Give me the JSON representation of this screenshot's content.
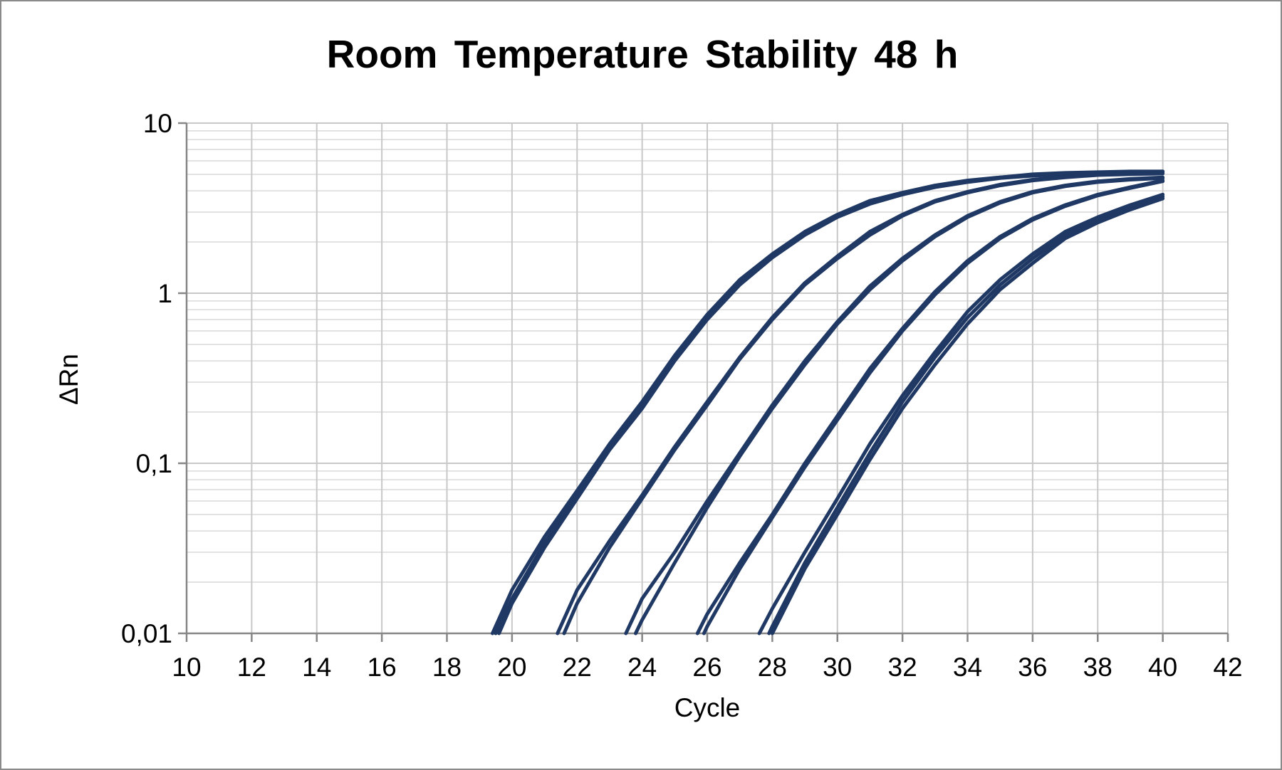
{
  "chart_data": {
    "type": "line",
    "title": "Room Temperature Stability 48 h",
    "xlabel": "Cycle",
    "ylabel": "ΔRn",
    "xlim": [
      10,
      42
    ],
    "x_ticks": [
      10,
      12,
      14,
      16,
      18,
      20,
      22,
      24,
      26,
      28,
      30,
      32,
      34,
      36,
      38,
      40,
      42
    ],
    "y_scale": "log",
    "ylim": [
      0.01,
      10
    ],
    "y_ticks": [
      {
        "value": 0.01,
        "label": "0,01"
      },
      {
        "value": 0.1,
        "label": "0,1"
      },
      {
        "value": 1,
        "label": "1"
      },
      {
        "value": 10,
        "label": "10"
      }
    ],
    "grid": true,
    "legend": "none",
    "line_color": "#1f3864",
    "series": [
      {
        "x": [
          19.4,
          20,
          21,
          22,
          23,
          24,
          25,
          26,
          27,
          28,
          29,
          30,
          31,
          32,
          33,
          34,
          35,
          36,
          37,
          38,
          39,
          40
        ],
        "values": [
          0.01,
          0.018,
          0.037,
          0.069,
          0.13,
          0.23,
          0.43,
          0.75,
          1.2,
          1.7,
          2.3,
          2.9,
          3.5,
          3.9,
          4.3,
          4.6,
          4.8,
          5.0,
          5.1,
          5.15,
          5.2,
          5.2
        ]
      },
      {
        "x": [
          19.5,
          20,
          21,
          22,
          23,
          24,
          25,
          26,
          27,
          28,
          29,
          30,
          31,
          32,
          33,
          34,
          35,
          36,
          37,
          38,
          39,
          40
        ],
        "values": [
          0.01,
          0.016,
          0.034,
          0.065,
          0.125,
          0.22,
          0.41,
          0.72,
          1.15,
          1.65,
          2.25,
          2.85,
          3.4,
          3.85,
          4.25,
          4.55,
          4.8,
          4.95,
          5.05,
          5.1,
          5.15,
          5.2
        ]
      },
      {
        "x": [
          19.6,
          20,
          21,
          22,
          23,
          24,
          25,
          26,
          27,
          28,
          29,
          30,
          31,
          32,
          33,
          34,
          35,
          36,
          37,
          38,
          39,
          40
        ],
        "values": [
          0.01,
          0.015,
          0.032,
          0.062,
          0.12,
          0.21,
          0.4,
          0.7,
          1.12,
          1.62,
          2.2,
          2.8,
          3.35,
          3.8,
          4.2,
          4.5,
          4.75,
          4.9,
          5.0,
          5.05,
          5.1,
          5.15
        ]
      },
      {
        "x": [
          21.4,
          22,
          23,
          24,
          25,
          26,
          27,
          28,
          29,
          30,
          31,
          32,
          33,
          34,
          35,
          36,
          37,
          38,
          39,
          40
        ],
        "values": [
          0.01,
          0.018,
          0.035,
          0.065,
          0.125,
          0.23,
          0.42,
          0.72,
          1.15,
          1.65,
          2.3,
          2.9,
          3.5,
          3.95,
          4.35,
          4.65,
          4.85,
          5.0,
          5.05,
          5.1
        ]
      },
      {
        "x": [
          21.6,
          22,
          23,
          24,
          25,
          26,
          27,
          28,
          29,
          30,
          31,
          32,
          33,
          34,
          35,
          36,
          37,
          38,
          39,
          40
        ],
        "values": [
          0.01,
          0.015,
          0.032,
          0.062,
          0.12,
          0.22,
          0.41,
          0.7,
          1.12,
          1.6,
          2.2,
          2.85,
          3.45,
          3.9,
          4.3,
          4.6,
          4.8,
          4.95,
          5.0,
          5.05
        ]
      },
      {
        "x": [
          23.5,
          24,
          25,
          26,
          27,
          28,
          29,
          30,
          31,
          32,
          33,
          34,
          35,
          36,
          37,
          38,
          39,
          40
        ],
        "values": [
          0.01,
          0.016,
          0.03,
          0.06,
          0.115,
          0.22,
          0.4,
          0.68,
          1.1,
          1.6,
          2.2,
          2.85,
          3.45,
          3.95,
          4.3,
          4.55,
          4.7,
          4.8
        ]
      },
      {
        "x": [
          23.8,
          24,
          25,
          26,
          27,
          28,
          29,
          30,
          31,
          32,
          33,
          34,
          35,
          36,
          37,
          38,
          39,
          40
        ],
        "values": [
          0.01,
          0.012,
          0.026,
          0.055,
          0.11,
          0.21,
          0.38,
          0.66,
          1.05,
          1.55,
          2.15,
          2.8,
          3.4,
          3.9,
          4.25,
          4.5,
          4.65,
          4.75
        ]
      },
      {
        "x": [
          25.7,
          26,
          27,
          28,
          29,
          30,
          31,
          32,
          33,
          34,
          35,
          36,
          37,
          38,
          39,
          40
        ],
        "values": [
          0.01,
          0.013,
          0.026,
          0.05,
          0.1,
          0.19,
          0.36,
          0.62,
          1.02,
          1.55,
          2.15,
          2.75,
          3.3,
          3.8,
          4.2,
          4.6
        ]
      },
      {
        "x": [
          25.9,
          26,
          27,
          28,
          29,
          30,
          31,
          32,
          33,
          34,
          35,
          36,
          37,
          38,
          39,
          40
        ],
        "values": [
          0.01,
          0.011,
          0.024,
          0.048,
          0.095,
          0.18,
          0.34,
          0.6,
          0.98,
          1.5,
          2.1,
          2.7,
          3.25,
          3.75,
          4.15,
          4.55
        ]
      },
      {
        "x": [
          27.6,
          28,
          29,
          30,
          31,
          32,
          33,
          34,
          35,
          36,
          37,
          38,
          39,
          40
        ],
        "values": [
          0.01,
          0.014,
          0.03,
          0.062,
          0.13,
          0.25,
          0.45,
          0.78,
          1.2,
          1.7,
          2.3,
          2.8,
          3.3,
          3.8
        ]
      },
      {
        "x": [
          27.9,
          28,
          29,
          30,
          31,
          32,
          33,
          34,
          35,
          36,
          37,
          38,
          39,
          40
        ],
        "values": [
          0.01,
          0.011,
          0.026,
          0.055,
          0.115,
          0.23,
          0.42,
          0.72,
          1.12,
          1.6,
          2.2,
          2.7,
          3.2,
          3.7
        ]
      },
      {
        "x": [
          28.0,
          29,
          30,
          31,
          32,
          33,
          34,
          35,
          36,
          37,
          38,
          39,
          40
        ],
        "values": [
          0.01,
          0.024,
          0.05,
          0.105,
          0.21,
          0.38,
          0.66,
          1.05,
          1.5,
          2.1,
          2.6,
          3.1,
          3.6
        ]
      }
    ]
  }
}
